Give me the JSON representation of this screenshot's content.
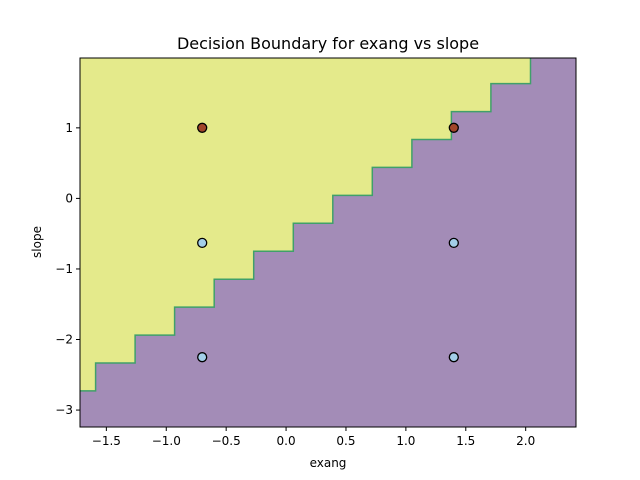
{
  "chart_data": {
    "type": "scatter",
    "title": "Decision Boundary for exang vs slope",
    "xlabel": "exang",
    "ylabel": "slope",
    "xlim": [
      -1.72,
      2.42
    ],
    "ylim": [
      -3.24,
      1.99
    ],
    "xticks": [
      -1.5,
      -1.0,
      -0.5,
      0.0,
      0.5,
      1.0,
      1.5,
      2.0
    ],
    "xtick_labels": [
      "−1.5",
      "−1.0",
      "−0.5",
      "0.0",
      "0.5",
      "1.0",
      "1.5",
      "2.0"
    ],
    "yticks": [
      -3,
      -2,
      -1,
      0,
      1
    ],
    "ytick_labels": [
      "−3",
      "−2",
      "−1",
      "0",
      "1"
    ],
    "grid": false,
    "regions": [
      {
        "class": "upper-left",
        "color": "#e4ea8b"
      },
      {
        "class": "lower-right",
        "color": "#a38cb7"
      }
    ],
    "boundary_color": "#3fa06a",
    "boundary": {
      "slope": 1.2,
      "intercept": -0.425,
      "step_x": 0.33
    },
    "points": [
      {
        "x": -0.7,
        "y": 1.0,
        "color": "#a1452a"
      },
      {
        "x": 1.4,
        "y": 1.0,
        "color": "#a1452a"
      },
      {
        "x": -0.7,
        "y": -0.63,
        "color": "#a3cfe9"
      },
      {
        "x": 1.4,
        "y": -0.63,
        "color": "#a3cfe9"
      },
      {
        "x": -0.7,
        "y": -2.25,
        "color": "#a3cfe9"
      },
      {
        "x": 1.4,
        "y": -2.25,
        "color": "#a3cfe9"
      }
    ]
  }
}
